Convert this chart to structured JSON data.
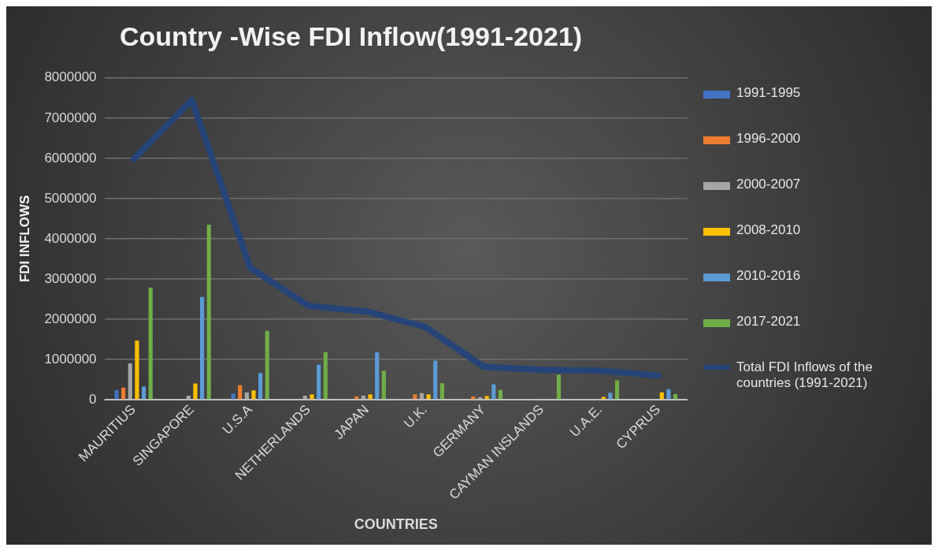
{
  "chart_data": {
    "type": "bar",
    "title": "Country -Wise FDI Inflow(1991-2021)",
    "xlabel": "COUNTRIES",
    "ylabel": "FDI INFLOWS",
    "categories": [
      "MAURITIUS",
      "SINGAPORE",
      "U.S.A",
      "NETHERLANDS",
      "JAPAN",
      "U.K.",
      "GERMANY",
      "CAYMAN INSLANDS",
      "U.A.E.",
      "CYPRUS"
    ],
    "series": [
      {
        "name": "1991-1995",
        "color": "#4472c4",
        "values": [
          240000,
          0,
          150000,
          0,
          0,
          0,
          0,
          0,
          0,
          0
        ]
      },
      {
        "name": "1996-2000",
        "color": "#ed7d31",
        "values": [
          300000,
          0,
          360000,
          0,
          80000,
          130000,
          80000,
          0,
          0,
          0
        ]
      },
      {
        "name": "2000-2007",
        "color": "#a5a5a5",
        "values": [
          900000,
          100000,
          180000,
          100000,
          100000,
          160000,
          60000,
          0,
          0,
          0
        ]
      },
      {
        "name": "2008-2010",
        "color": "#ffc000",
        "values": [
          1470000,
          400000,
          230000,
          130000,
          130000,
          130000,
          90000,
          0,
          70000,
          180000
        ]
      },
      {
        "name": "2010-2016",
        "color": "#5b9bd5",
        "values": [
          330000,
          2550000,
          660000,
          870000,
          1180000,
          970000,
          380000,
          0,
          170000,
          260000
        ]
      },
      {
        "name": "2017-2021",
        "color": "#70ad47",
        "values": [
          2790000,
          4350000,
          1710000,
          1180000,
          720000,
          410000,
          240000,
          620000,
          480000,
          140000
        ]
      },
      {
        "name": "Total FDI Inflows of the countries (1991-2021)",
        "type": "line",
        "color": "#264478",
        "values": [
          5980000,
          7450000,
          3280000,
          2330000,
          2190000,
          1810000,
          820000,
          740000,
          720000,
          600000
        ]
      }
    ],
    "ylim": [
      0,
      8000000
    ],
    "yticks": [
      0,
      1000000,
      2000000,
      3000000,
      4000000,
      5000000,
      6000000,
      7000000,
      8000000
    ],
    "grid": "y",
    "legend": "right",
    "marker": "none",
    "line_style": "solid"
  }
}
